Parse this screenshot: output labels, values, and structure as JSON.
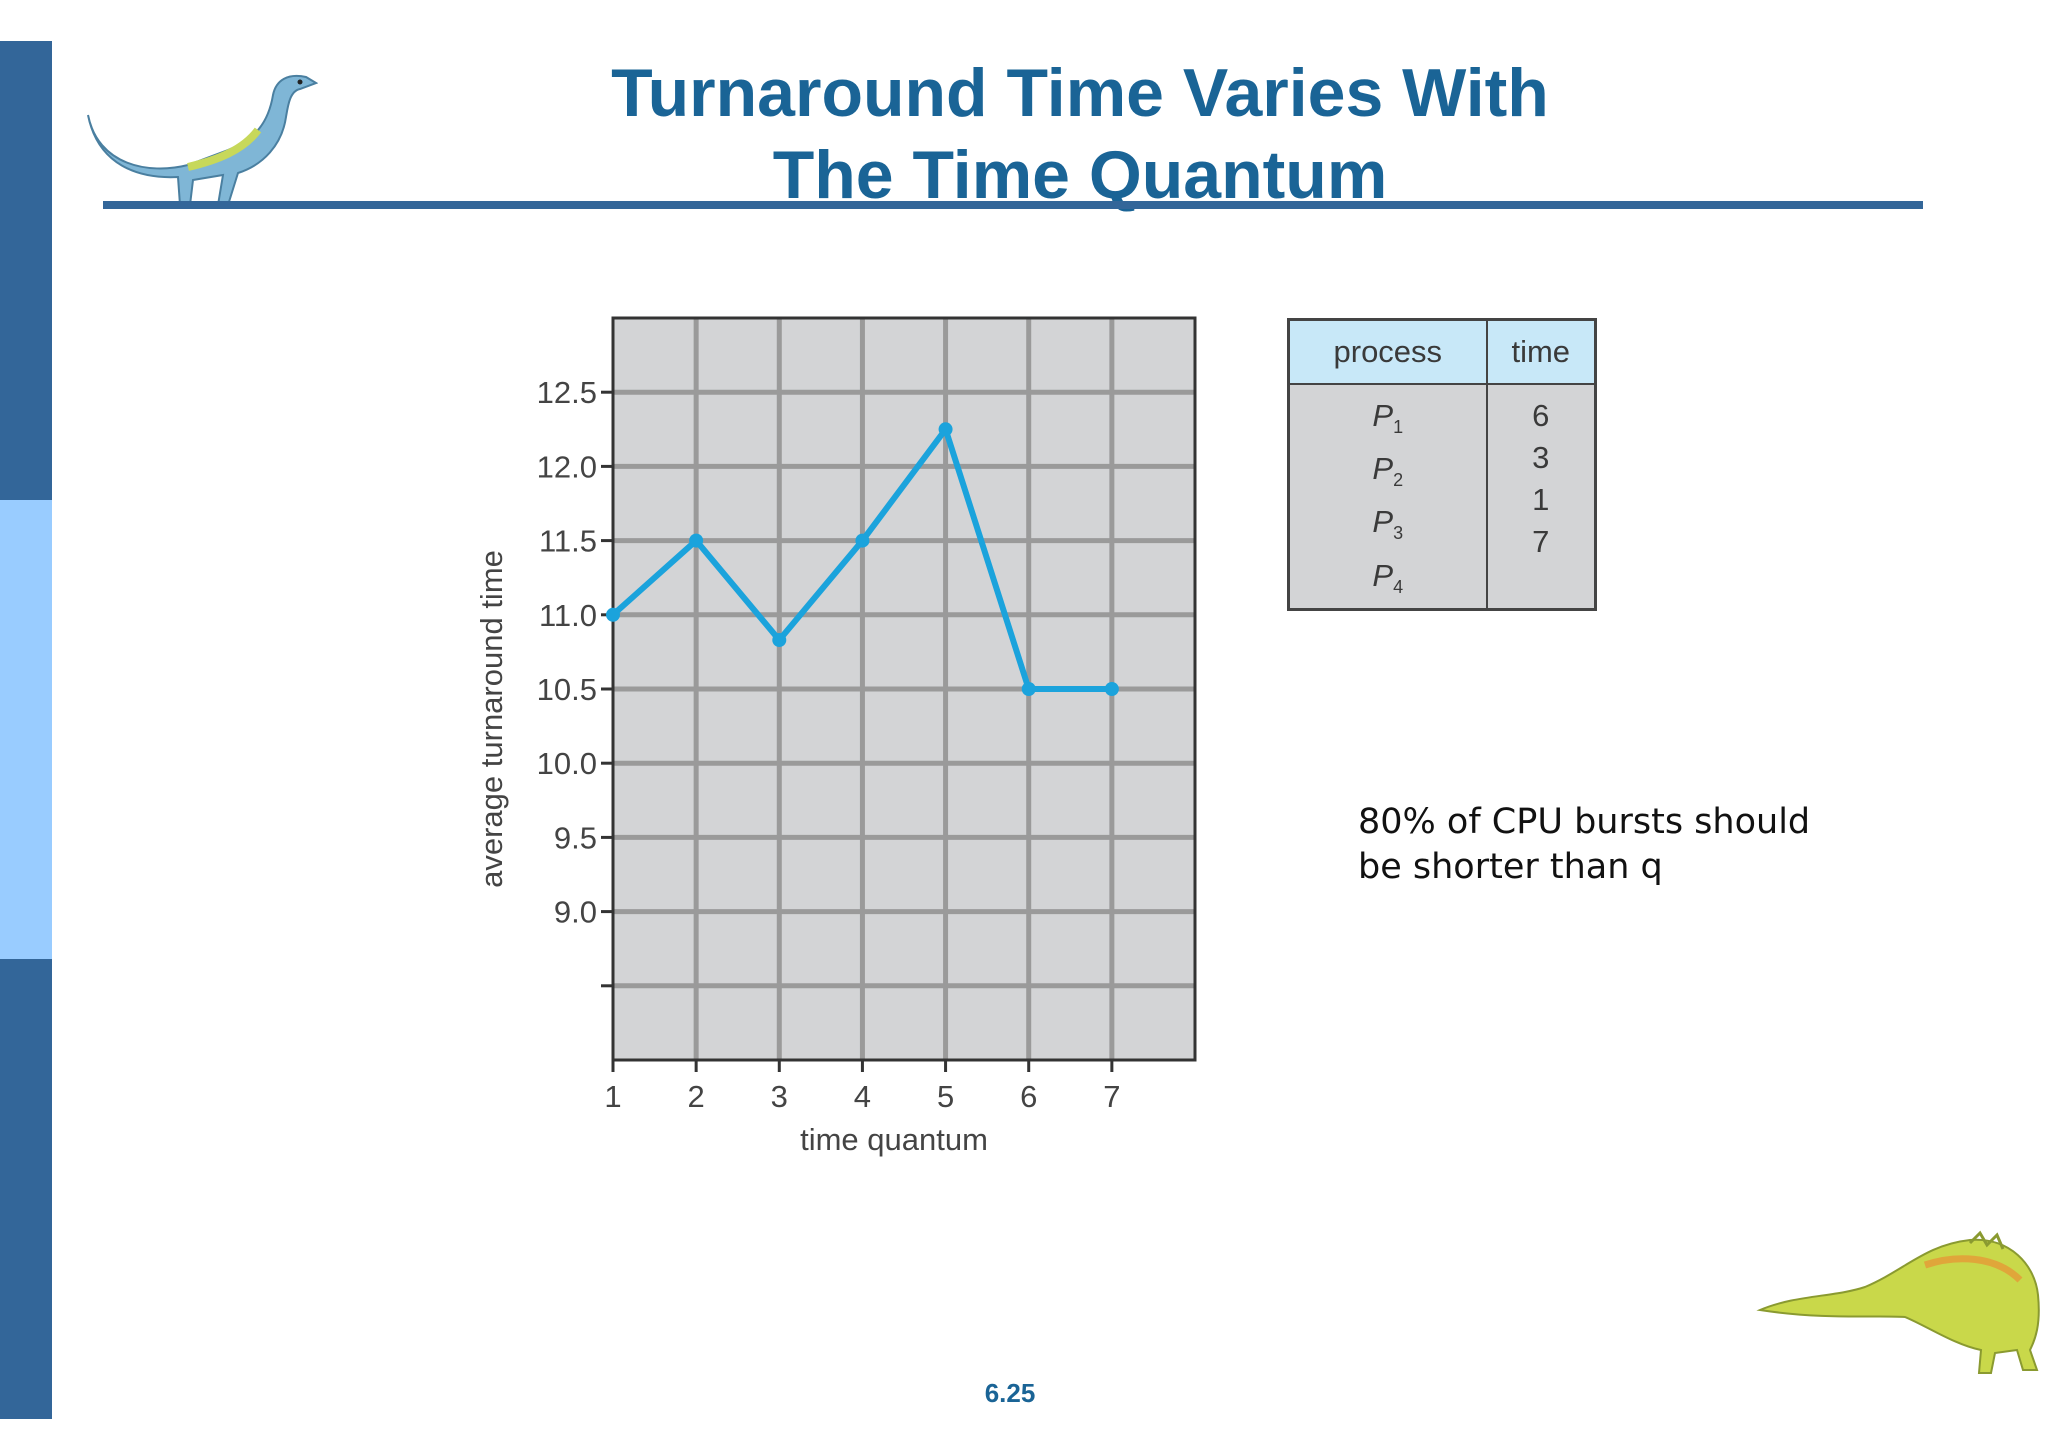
{
  "slide": {
    "title_lines": [
      "Turnaround Time Varies With",
      "The Time Quantum"
    ],
    "page_number": "6.25",
    "note_lines": [
      "80% of CPU bursts should",
      "be shorter than q"
    ]
  },
  "colors": {
    "title": "#1a6496",
    "sidebar_dark": "#336699",
    "sidebar_light": "#99ccff",
    "line": "#1ba3dc",
    "plot_bg": "#d3d4d6",
    "grid": "#9a9a9a",
    "table_header_bg": "#c8e8f8"
  },
  "process_table": {
    "headers": [
      "process",
      "time"
    ],
    "rows": [
      {
        "name": "P",
        "sub": "1",
        "time": "6"
      },
      {
        "name": "P",
        "sub": "2",
        "time": "3"
      },
      {
        "name": "P",
        "sub": "3",
        "time": "1"
      },
      {
        "name": "P",
        "sub": "4",
        "time": "7"
      }
    ]
  },
  "chart_data": {
    "type": "line",
    "title": "",
    "xlabel": "time quantum",
    "ylabel": "average turnaround time",
    "x": [
      1,
      2,
      3,
      4,
      5,
      6,
      7
    ],
    "series": [
      {
        "values": [
          11.0,
          11.5,
          10.83,
          11.5,
          12.25,
          10.5,
          10.5
        ]
      }
    ],
    "xticks": [
      "1",
      "2",
      "3",
      "4",
      "5",
      "6",
      "7"
    ],
    "yticks": [
      "9.0",
      "9.5",
      "10.0",
      "10.5",
      "11.0",
      "11.5",
      "12.0",
      "12.5"
    ],
    "xlim": [
      1,
      8
    ],
    "ylim": [
      8.0,
      13.0
    ],
    "grid": true,
    "legend": "none"
  }
}
